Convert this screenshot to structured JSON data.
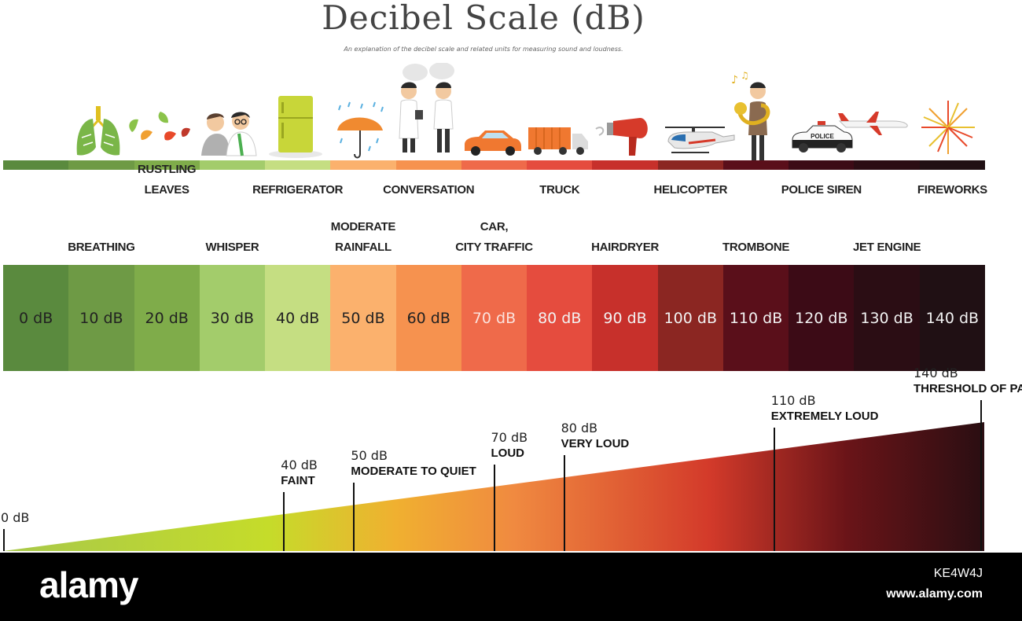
{
  "title": "Decibel Scale (dB)",
  "subtitle": "An explanation of the decibel scale and related units for measuring sound and loudness.",
  "colors": [
    "#5a8a3e",
    "#6e9a45",
    "#7fac4a",
    "#a3cc6b",
    "#c5de82",
    "#fbb16d",
    "#f6924f",
    "#ef6a4a",
    "#e54c3e",
    "#c7302b",
    "#8b2622",
    "#5a0f1a",
    "#3c0b16",
    "#2b0d14",
    "#201014"
  ],
  "scale": [
    {
      "label": "0 dB"
    },
    {
      "label": "10 dB"
    },
    {
      "label": "20 dB"
    },
    {
      "label": "30 dB"
    },
    {
      "label": "40 dB"
    },
    {
      "label": "50 dB"
    },
    {
      "label": "60 dB"
    },
    {
      "label": "70 dB"
    },
    {
      "label": "80 dB"
    },
    {
      "label": "90 dB"
    },
    {
      "label": "100 dB"
    },
    {
      "label": "110 dB"
    },
    {
      "label": "120 dB"
    },
    {
      "label": "130 dB"
    },
    {
      "label": "140 dB"
    }
  ],
  "sounds_top": [
    {
      "name": "RUSTLING\nLEAVES",
      "db": 20
    },
    {
      "name": "REFRIGERATOR",
      "db": 40
    },
    {
      "name": "CONVERSATION",
      "db": 60
    },
    {
      "name": "TRUCK",
      "db": 80
    },
    {
      "name": "HELICOPTER",
      "db": 100
    },
    {
      "name": "POLICE SIREN",
      "db": 120
    },
    {
      "name": "FIREWORKS",
      "db": 140
    }
  ],
  "sounds_bottom": [
    {
      "name": "BREATHING",
      "db": 10
    },
    {
      "name": "WHISPER",
      "db": 30
    },
    {
      "name": "MODERATE\nRAINFALL",
      "db": 50
    },
    {
      "name": "CAR,\nCITY TRAFFIC",
      "db": 70
    },
    {
      "name": "HAIRDRYER",
      "db": 90
    },
    {
      "name": "TROMBONE",
      "db": 110
    },
    {
      "name": "JET ENGINE",
      "db": 130
    }
  ],
  "markers": [
    {
      "value": "0 dB",
      "desc": "",
      "db": 0
    },
    {
      "value": "40 dB",
      "desc": "FAINT",
      "db": 40
    },
    {
      "value": "50 dB",
      "desc": "MODERATE TO QUIET",
      "db": 50
    },
    {
      "value": "70 dB",
      "desc": "LOUD",
      "db": 70
    },
    {
      "value": "80 dB",
      "desc": "VERY LOUD",
      "db": 80
    },
    {
      "value": "110 dB",
      "desc": "EXTREMELY LOUD",
      "db": 110
    },
    {
      "value": "140 dB",
      "desc": "THRESHOLD OF PAIN",
      "db": 140
    }
  ],
  "icons": [
    "lungs-icon",
    "leaves-icon",
    "whisper-people-icon",
    "refrigerator-icon",
    "umbrella-rain-icon",
    "conversation-people-icon",
    "car-icon",
    "truck-icon",
    "hairdryer-icon",
    "helicopter-icon",
    "trombone-player-icon",
    "police-car-icon",
    "jet-plane-icon",
    "fireworks-icon"
  ],
  "police_text": "POLICE",
  "footer": {
    "logo": "alamy",
    "code": "KE4W4J",
    "url": "www.alamy.com"
  }
}
